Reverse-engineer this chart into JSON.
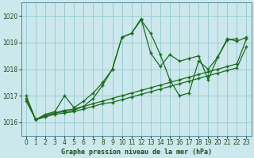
{
  "bg_color": "#cce8ec",
  "grid_color": "#99ccd4",
  "line_color": "#1a6b1a",
  "xlabel": "Graphe pression niveau de la mer (hPa)",
  "ylim": [
    1015.5,
    1020.5
  ],
  "xlim": [
    -0.5,
    23.5
  ],
  "yticks": [
    1016,
    1017,
    1018,
    1019,
    1020
  ],
  "xticks": [
    0,
    1,
    2,
    3,
    4,
    5,
    6,
    7,
    8,
    9,
    10,
    11,
    12,
    13,
    14,
    15,
    16,
    17,
    18,
    19,
    20,
    21,
    22,
    23
  ],
  "lines": [
    {
      "x": [
        0,
        1,
        2,
        3,
        4,
        5,
        6,
        7,
        8,
        9,
        10,
        11,
        12,
        13,
        14,
        15,
        16,
        17,
        18,
        19,
        20,
        21,
        22,
        23
      ],
      "y": [
        1017.0,
        1016.1,
        1016.3,
        1016.4,
        1017.0,
        1016.55,
        1016.8,
        1017.1,
        1017.5,
        1018.0,
        1019.2,
        1019.35,
        1019.9,
        1018.6,
        1018.1,
        1018.55,
        1018.3,
        1018.4,
        1018.5,
        1017.6,
        1018.45,
        1019.15,
        1019.05,
        1019.2
      ]
    },
    {
      "x": [
        0,
        1,
        2,
        3,
        4,
        5,
        6,
        7,
        8,
        9,
        10,
        11,
        12,
        13,
        14,
        15,
        16,
        17,
        18,
        19,
        20,
        21,
        22,
        23
      ],
      "y": [
        1016.9,
        1016.1,
        1016.25,
        1016.35,
        1016.45,
        1016.5,
        1016.6,
        1016.7,
        1016.8,
        1016.9,
        1017.0,
        1017.1,
        1017.2,
        1017.3,
        1017.4,
        1017.5,
        1017.6,
        1017.7,
        1017.8,
        1017.9,
        1018.0,
        1018.1,
        1018.2,
        1019.15
      ]
    },
    {
      "x": [
        0,
        1,
        2,
        3,
        4,
        5,
        6,
        7,
        8,
        9,
        10,
        11,
        12,
        13,
        14,
        15,
        16,
        17,
        18,
        19,
        20,
        21,
        22,
        23
      ],
      "y": [
        1016.8,
        1016.1,
        1016.2,
        1016.3,
        1016.35,
        1016.4,
        1016.5,
        1016.6,
        1016.7,
        1016.75,
        1016.85,
        1016.95,
        1017.05,
        1017.15,
        1017.25,
        1017.35,
        1017.45,
        1017.55,
        1017.65,
        1017.75,
        1017.85,
        1017.95,
        1018.05,
        1018.85
      ]
    },
    {
      "x": [
        1,
        2,
        3,
        4,
        5,
        6,
        7,
        8,
        9,
        10,
        11,
        12,
        13,
        14,
        15,
        16,
        17,
        18,
        19,
        20,
        21,
        22
      ],
      "y": [
        1016.1,
        1016.25,
        1016.35,
        1016.4,
        1016.45,
        1016.6,
        1016.9,
        1017.4,
        1018.0,
        1019.2,
        1019.35,
        1019.85,
        1019.35,
        1018.55,
        1017.6,
        1017.0,
        1017.1,
        1018.3,
        1018.0,
        1018.45,
        1019.1,
        1019.15
      ]
    }
  ]
}
